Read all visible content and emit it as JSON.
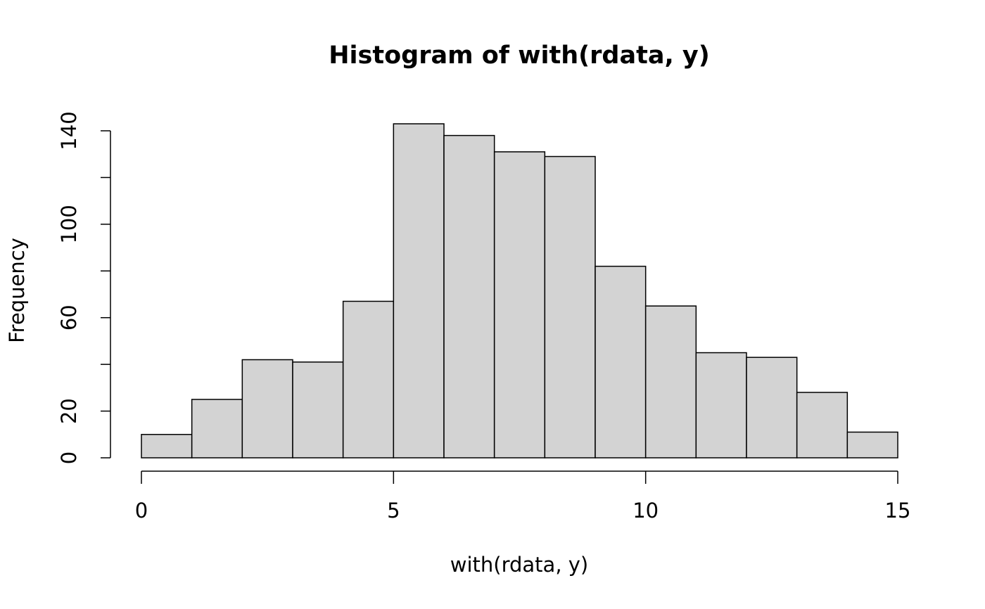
{
  "chart_data": {
    "type": "histogram",
    "title": "Histogram of with(rdata, y)",
    "x_label": "with(rdata, y)",
    "y_label": "Frequency",
    "bins": [
      0,
      1,
      2,
      3,
      4,
      5,
      6,
      7,
      8,
      9,
      10,
      11,
      12,
      13,
      14,
      15
    ],
    "values": [
      10,
      25,
      42,
      41,
      67,
      143,
      138,
      131,
      129,
      82,
      65,
      45,
      43,
      28,
      11
    ],
    "color": "#d3d3d3",
    "xlim": [
      0,
      15
    ],
    "xticks": [
      0,
      5,
      10,
      15
    ],
    "ylim": [
      0,
      140
    ],
    "yticks": [
      0,
      20,
      {
        "value": 40,
        "label": null
      },
      60,
      {
        "value": 80,
        "label": null
      },
      100,
      {
        "value": 120,
        "label": null
      },
      140
    ]
  }
}
